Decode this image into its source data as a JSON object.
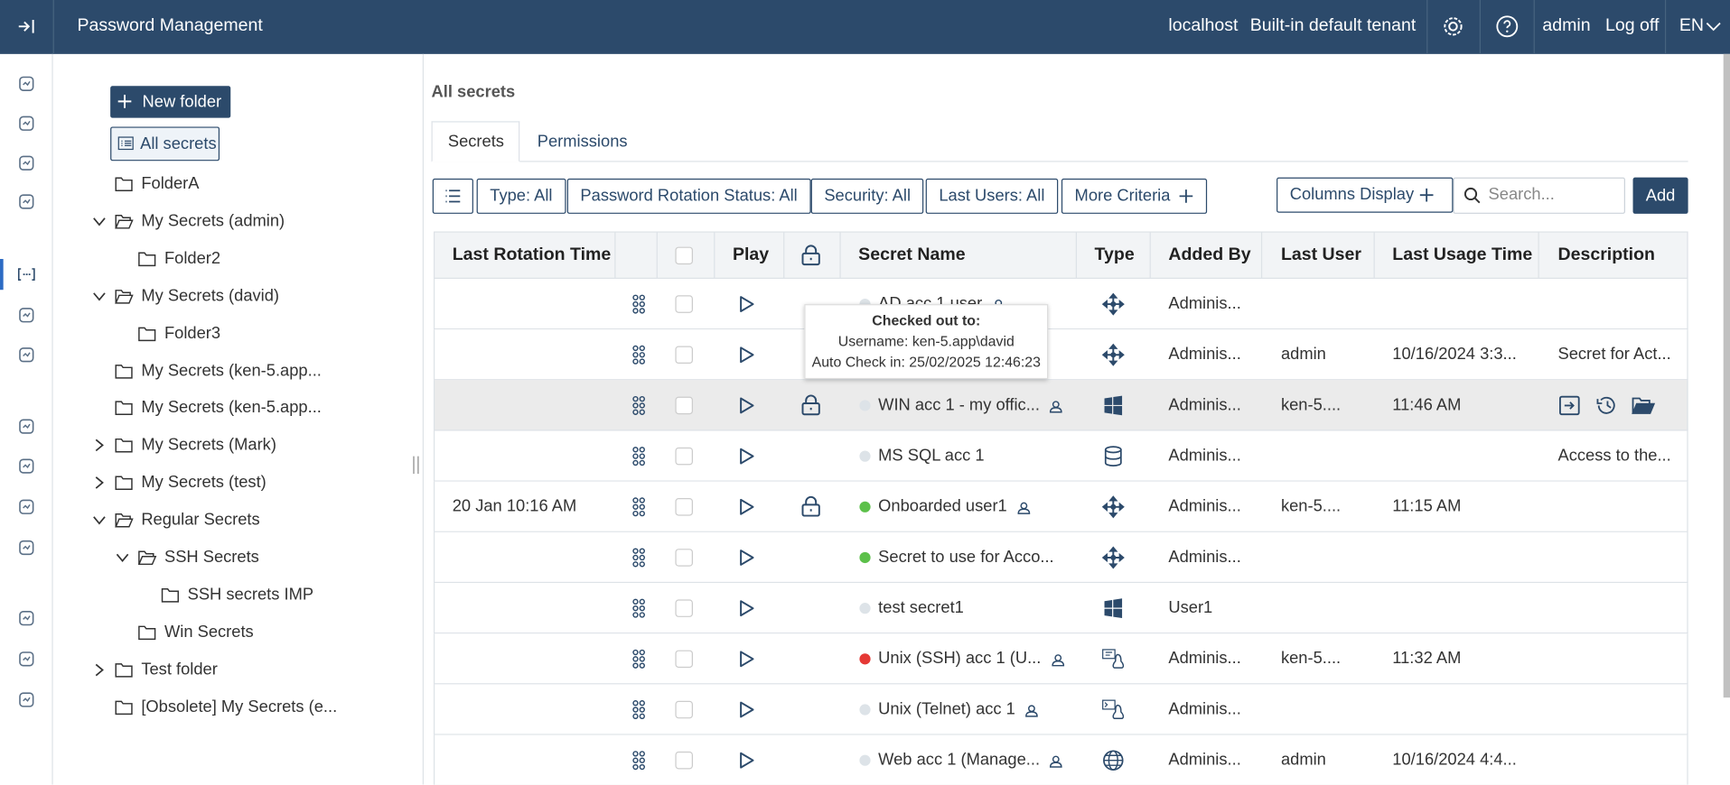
{
  "header": {
    "title": "Password Management",
    "server": "localhost",
    "tenant": "Built-in default tenant",
    "user": "admin",
    "logoff": "Log off",
    "language": "EN"
  },
  "sidebar": {
    "new_folder": "New folder",
    "all_secrets": "All secrets",
    "folders": [
      {
        "label": "FolderA",
        "level": 0,
        "expander": "none"
      },
      {
        "label": "My Secrets (admin)",
        "level": 0,
        "expander": "open"
      },
      {
        "label": "Folder2",
        "level": 1,
        "expander": "none"
      },
      {
        "label": "My Secrets (david)",
        "level": 0,
        "expander": "open"
      },
      {
        "label": "Folder3",
        "level": 1,
        "expander": "none"
      },
      {
        "label": "My Secrets (ken-5.app...",
        "level": 0,
        "expander": "none"
      },
      {
        "label": "My Secrets (ken-5.app...",
        "level": 0,
        "expander": "none"
      },
      {
        "label": "My Secrets (Mark)",
        "level": 0,
        "expander": "closed"
      },
      {
        "label": "My Secrets (test)",
        "level": 0,
        "expander": "closed"
      },
      {
        "label": "Regular Secrets",
        "level": 0,
        "expander": "open"
      },
      {
        "label": "SSH Secrets",
        "level": 1,
        "expander": "open"
      },
      {
        "label": "SSH secrets IMP",
        "level": 2,
        "expander": "none"
      },
      {
        "label": "Win Secrets",
        "level": 1,
        "expander": "none"
      },
      {
        "label": "Test folder",
        "level": 0,
        "expander": "closed"
      },
      {
        "label": "[Obsolete] My Secrets (e...",
        "level": 0,
        "expander": "none"
      }
    ]
  },
  "main": {
    "heading": "All secrets",
    "tabs": [
      "Secrets",
      "Permissions"
    ],
    "filters": [
      "Type: All",
      "Password Rotation Status: All",
      "Security: All",
      "Last Users: All",
      "More Criteria"
    ],
    "columns_display": "Columns Display",
    "search_placeholder": "Search...",
    "add": "Add"
  },
  "table": {
    "columns": [
      "Last Rotation Time",
      "Play",
      "Secret Name",
      "Type",
      "Added By",
      "Last User",
      "Last Usage Time",
      "Description"
    ],
    "rows": [
      {
        "status": "#dde3e8",
        "name": "AD acc 1 user",
        "user_icon": true,
        "type": "network",
        "added_by": "Adminis..."
      },
      {
        "type": "network",
        "added_by": "Adminis...",
        "last_user": "admin",
        "last_usage": "10/16/2024 3:3...",
        "description": "Secret for Act..."
      },
      {
        "locked": true,
        "status": "#dde3e8",
        "name": "WIN acc 1 - my offic...",
        "user_icon": true,
        "type": "windows",
        "added_by": "Adminis...",
        "last_user": "ken-5....",
        "last_usage": "11:46 AM",
        "actions": true,
        "selected": true
      },
      {
        "status": "#dde3e8",
        "name": "MS SQL acc 1",
        "type": "database",
        "added_by": "Adminis...",
        "description": "Access to the..."
      },
      {
        "rotation": "20 Jan 10:16 AM",
        "locked": true,
        "status": "#5cc04a",
        "name": "Onboarded user1",
        "user_icon": true,
        "type": "network",
        "added_by": "Adminis...",
        "last_user": "ken-5....",
        "last_usage": "11:15 AM"
      },
      {
        "status": "#5cc04a",
        "name": "Secret to use for Acco...",
        "type": "network",
        "added_by": "Adminis..."
      },
      {
        "status": "#dde3e8",
        "name": "test secret1",
        "type": "windows",
        "added_by": "User1"
      },
      {
        "status": "#e53935",
        "name": "Unix (SSH) acc 1 (U...",
        "user_icon": true,
        "type": "ssh",
        "added_by": "Adminis...",
        "last_user": "ken-5....",
        "last_usage": "11:32 AM"
      },
      {
        "status": "#dde3e8",
        "name": "Unix (Telnet) acc 1",
        "user_icon": true,
        "type": "telnet",
        "added_by": "Adminis..."
      },
      {
        "status": "#dde3e8",
        "name": "Web acc 1 (Manage...",
        "user_icon": true,
        "type": "web",
        "added_by": "Adminis...",
        "last_user": "admin",
        "last_usage": "10/16/2024 4:4..."
      }
    ]
  },
  "tooltip": {
    "title": "Checked out to:",
    "username": "Username: ken-5.app\\david",
    "auto_check_in": "Auto Check in: 25/02/2025 12:46:23"
  }
}
